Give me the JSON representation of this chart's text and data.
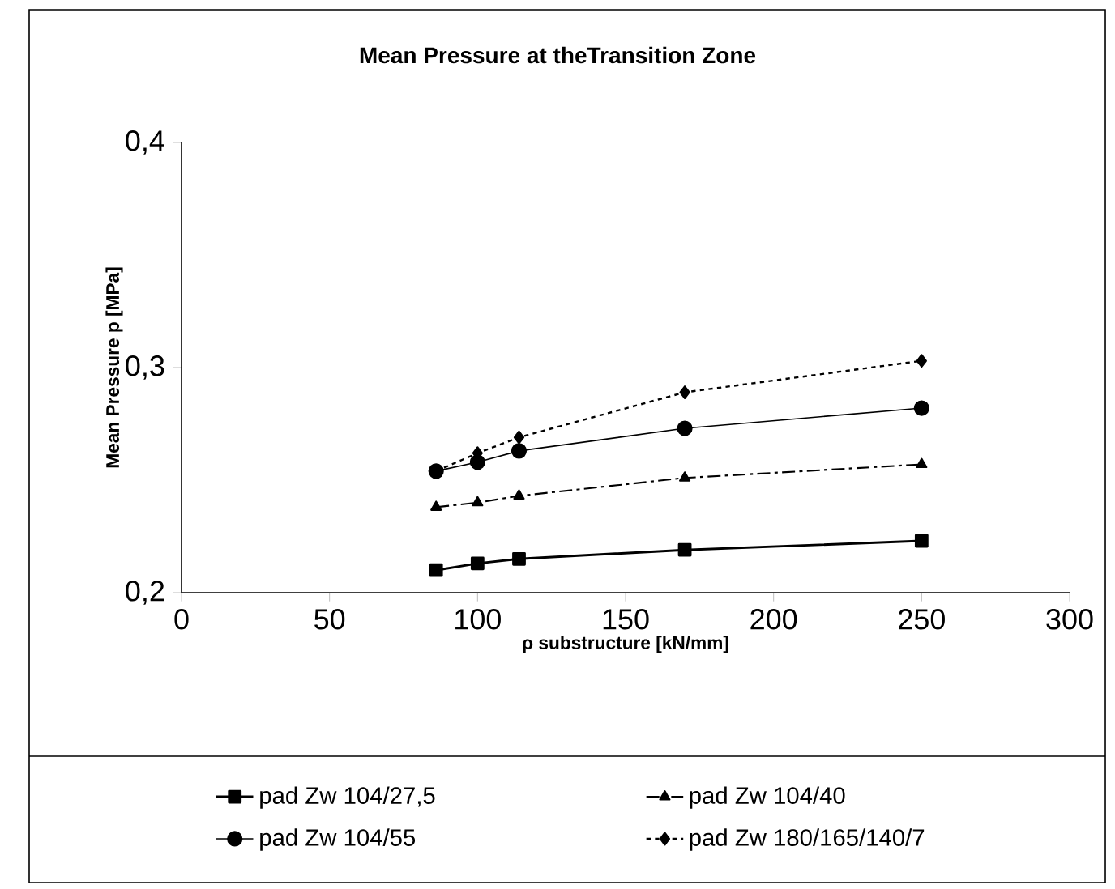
{
  "chart_data": {
    "type": "line",
    "title": "Mean Pressure at theTransition Zone",
    "xlabel": "ρ substructure [kN/mm]",
    "ylabel": "Mean Pressure p  [MPa]",
    "x": [
      86,
      100,
      114,
      170,
      250
    ],
    "series": [
      {
        "name": "pad Zw 104/27,5",
        "color": "#000000",
        "marker": "square",
        "line_style": "solid",
        "values": [
          0.21,
          0.213,
          0.215,
          0.219,
          0.223
        ]
      },
      {
        "name": "pad Zw 104/40",
        "color": "#000000",
        "marker": "triangle",
        "line_style": "dashed",
        "values": [
          0.238,
          0.24,
          0.243,
          0.251,
          0.257
        ]
      },
      {
        "name": "pad Zw 104/55",
        "color": "#000000",
        "marker": "circle",
        "line_style": "solid",
        "values": [
          0.254,
          0.258,
          0.263,
          0.273,
          0.282
        ]
      },
      {
        "name": "pad Zw 180/165/140/7",
        "color": "#000000",
        "marker": "diamond",
        "line_style": "dotted",
        "values": [
          0.254,
          0.262,
          0.269,
          0.289,
          0.303
        ]
      }
    ],
    "xlim": [
      0,
      300
    ],
    "ylim": [
      0.2,
      0.4
    ],
    "xticks": [
      0,
      50,
      100,
      150,
      200,
      250,
      300
    ],
    "yticks": [
      {
        "value": 0.2,
        "label": "0,2"
      },
      {
        "value": 0.3,
        "label": "0,3"
      },
      {
        "value": 0.4,
        "label": "0,4"
      }
    ],
    "grid": false,
    "legend": "bottom"
  }
}
